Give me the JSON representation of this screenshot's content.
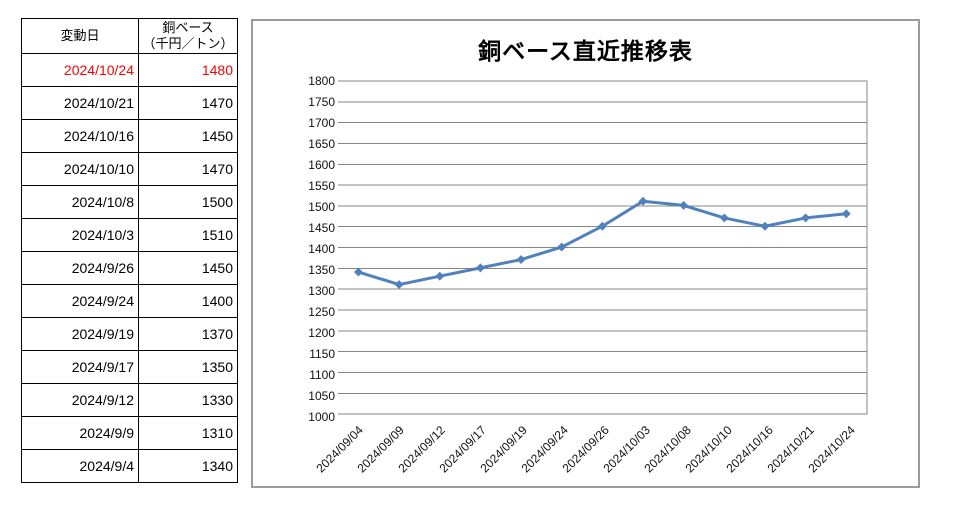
{
  "table": {
    "header_date": "変動日",
    "header_value_line1": "銅ベース",
    "header_value_line2": "（千円／トン）",
    "rows": [
      {
        "date": "2024/10/24",
        "value": "1480",
        "highlight": true
      },
      {
        "date": "2024/10/21",
        "value": "1470",
        "highlight": false
      },
      {
        "date": "2024/10/16",
        "value": "1450",
        "highlight": false
      },
      {
        "date": "2024/10/10",
        "value": "1470",
        "highlight": false
      },
      {
        "date": "2024/10/8",
        "value": "1500",
        "highlight": false
      },
      {
        "date": "2024/10/3",
        "value": "1510",
        "highlight": false
      },
      {
        "date": "2024/9/26",
        "value": "1450",
        "highlight": false
      },
      {
        "date": "2024/9/24",
        "value": "1400",
        "highlight": false
      },
      {
        "date": "2024/9/19",
        "value": "1370",
        "highlight": false
      },
      {
        "date": "2024/9/17",
        "value": "1350",
        "highlight": false
      },
      {
        "date": "2024/9/12",
        "value": "1330",
        "highlight": false
      },
      {
        "date": "2024/9/9",
        "value": "1310",
        "highlight": false
      },
      {
        "date": "2024/9/4",
        "value": "1340",
        "highlight": false
      }
    ]
  },
  "chart_data": {
    "type": "line",
    "title": "銅ベース直近推移表",
    "categories": [
      "2024/09/04",
      "2024/09/09",
      "2024/09/12",
      "2024/09/17",
      "2024/09/19",
      "2024/09/24",
      "2024/09/26",
      "2024/10/03",
      "2024/10/08",
      "2024/10/10",
      "2024/10/16",
      "2024/10/21",
      "2024/10/24"
    ],
    "values": [
      1340,
      1310,
      1330,
      1350,
      1370,
      1400,
      1450,
      1510,
      1500,
      1470,
      1450,
      1470,
      1480
    ],
    "xlabel": "",
    "ylabel": "",
    "ylim": [
      1000,
      1800
    ],
    "ytick_step": 50,
    "yticks": [
      1000,
      1050,
      1100,
      1150,
      1200,
      1250,
      1300,
      1350,
      1400,
      1450,
      1500,
      1550,
      1600,
      1650,
      1700,
      1750,
      1800
    ],
    "grid": true,
    "legend": "none",
    "line_color": "#4f81bd",
    "marker": "diamond",
    "grid_color": "#878787",
    "label_color": "#111111"
  }
}
